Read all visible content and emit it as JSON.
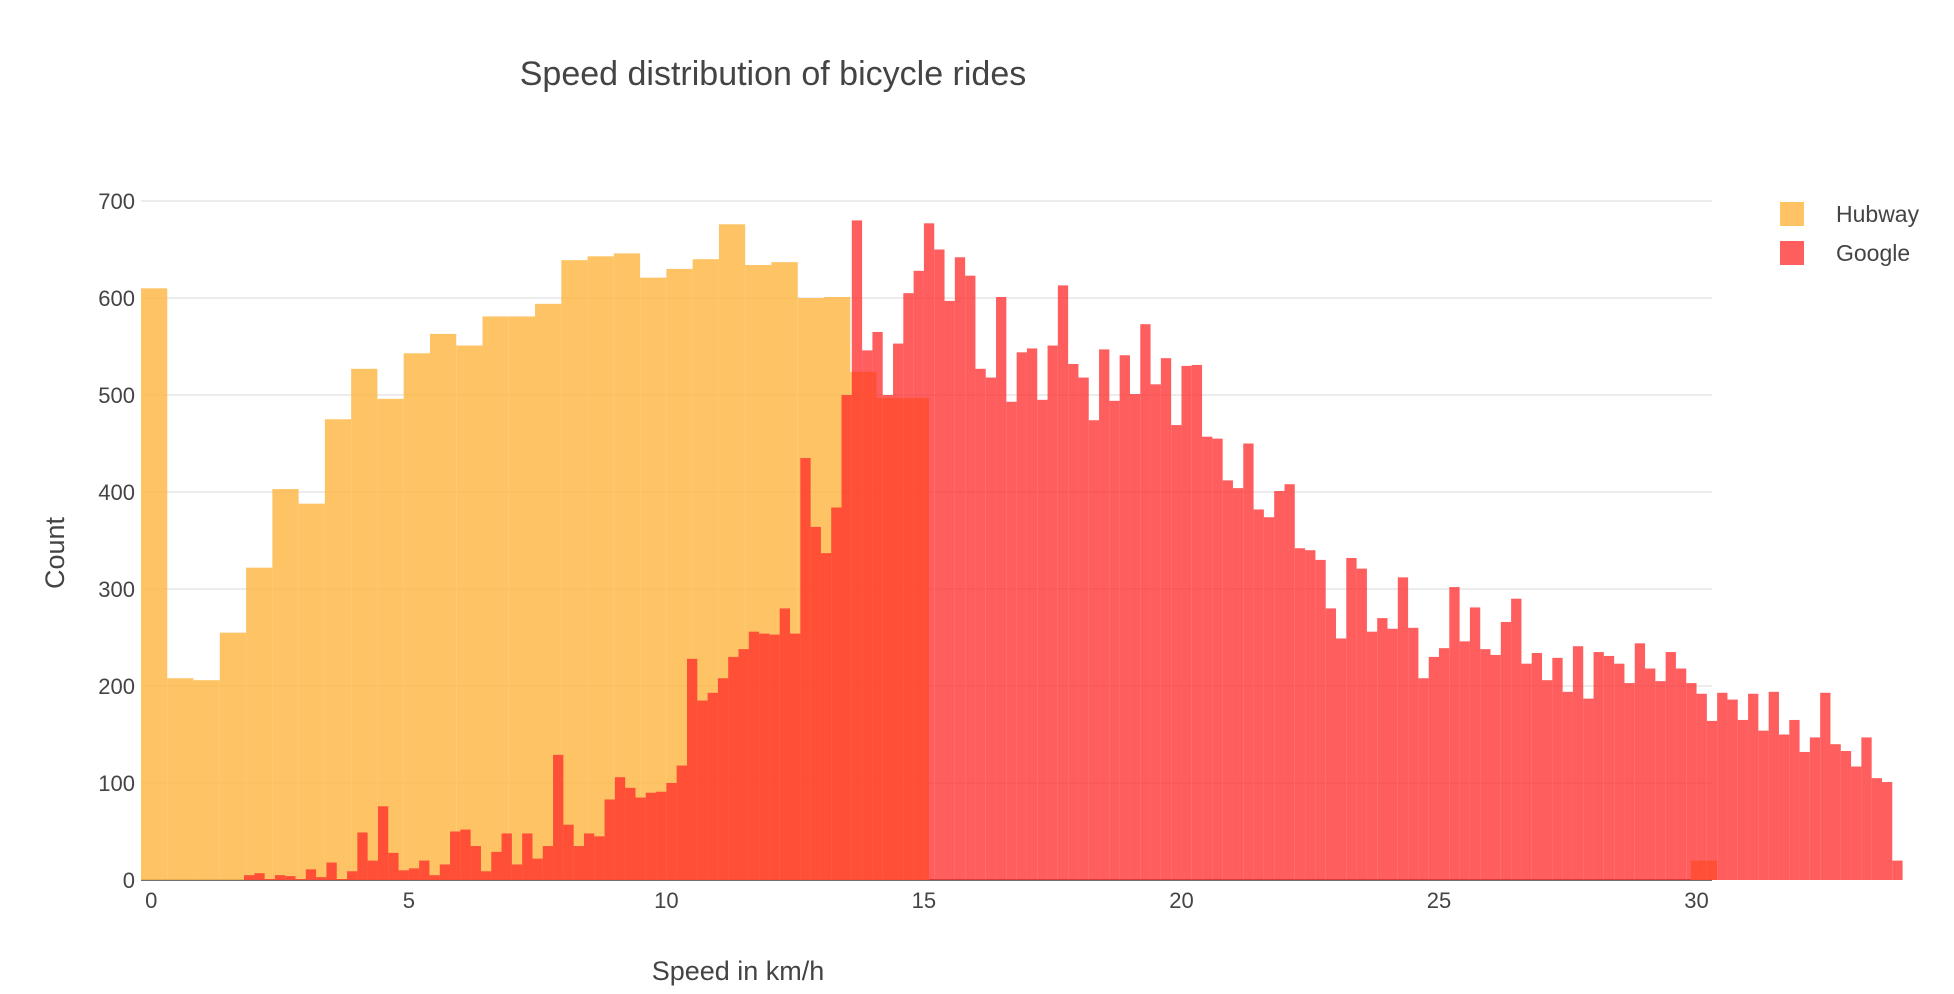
{
  "chart_data": {
    "type": "bar",
    "barmode": "overlay",
    "title": "Speed distribution of bicycle rides",
    "xlabel": "Speed in km/h",
    "ylabel": "Count",
    "xlim": [
      -0.2,
      30.3
    ],
    "ylim": [
      0,
      700
    ],
    "xticks": [
      0,
      5,
      10,
      15,
      20,
      25,
      30
    ],
    "yticks": [
      0,
      100,
      200,
      300,
      400,
      500,
      600,
      700
    ],
    "grid": true,
    "legend_position": "top-right",
    "series": [
      {
        "name": "Hubway",
        "color": "#fdb94a",
        "opacity": 0.85,
        "bin_start": -0.2,
        "bin_width": 0.51,
        "values": [
          610,
          208,
          206,
          255,
          322,
          403,
          388,
          475,
          527,
          496,
          543,
          563,
          551,
          581,
          581,
          594,
          639,
          643,
          646,
          621,
          630,
          640,
          676,
          634,
          637,
          600,
          601,
          524,
          497,
          497,
          0,
          0,
          0,
          0,
          0,
          0,
          0,
          0,
          0,
          0,
          0,
          0,
          0,
          0,
          0,
          0,
          0,
          0,
          0,
          0,
          0,
          0,
          0,
          0,
          0,
          0,
          0,
          0,
          0,
          20
        ]
      },
      {
        "name": "Google",
        "color": "#ff2828",
        "opacity": 0.75,
        "bin_start": 1.8,
        "bin_width": 0.2,
        "values": [
          5,
          7,
          1,
          5,
          4,
          1,
          11,
          3,
          18,
          1,
          9,
          49,
          20,
          76,
          28,
          10,
          12,
          20,
          5,
          16,
          50,
          52,
          35,
          9,
          29,
          48,
          16,
          48,
          22,
          35,
          129,
          57,
          35,
          48,
          45,
          83,
          106,
          95,
          85,
          90,
          91,
          100,
          118,
          228,
          185,
          193,
          208,
          230,
          238,
          256,
          254,
          253,
          280,
          254,
          435,
          364,
          337,
          384,
          500,
          680,
          546,
          565,
          500,
          553,
          605,
          628,
          677,
          650,
          597,
          642,
          623,
          527,
          518,
          601,
          493,
          544,
          548,
          495,
          551,
          613,
          532,
          518,
          474,
          547,
          494,
          541,
          501,
          573,
          511,
          538,
          469,
          530,
          531,
          457,
          455,
          412,
          404,
          450,
          382,
          374,
          401,
          408,
          342,
          340,
          330,
          280,
          249,
          332,
          321,
          256,
          270,
          259,
          312,
          260,
          208,
          230,
          239,
          302,
          246,
          281,
          238,
          232,
          266,
          290,
          223,
          234,
          206,
          229,
          194,
          241,
          187,
          235,
          231,
          223,
          203,
          244,
          218,
          205,
          235,
          218,
          203,
          192,
          164,
          193,
          186,
          165,
          192,
          154,
          194,
          150,
          165,
          132,
          147,
          193,
          140,
          133,
          117,
          147,
          105,
          101,
          20
        ]
      }
    ]
  }
}
